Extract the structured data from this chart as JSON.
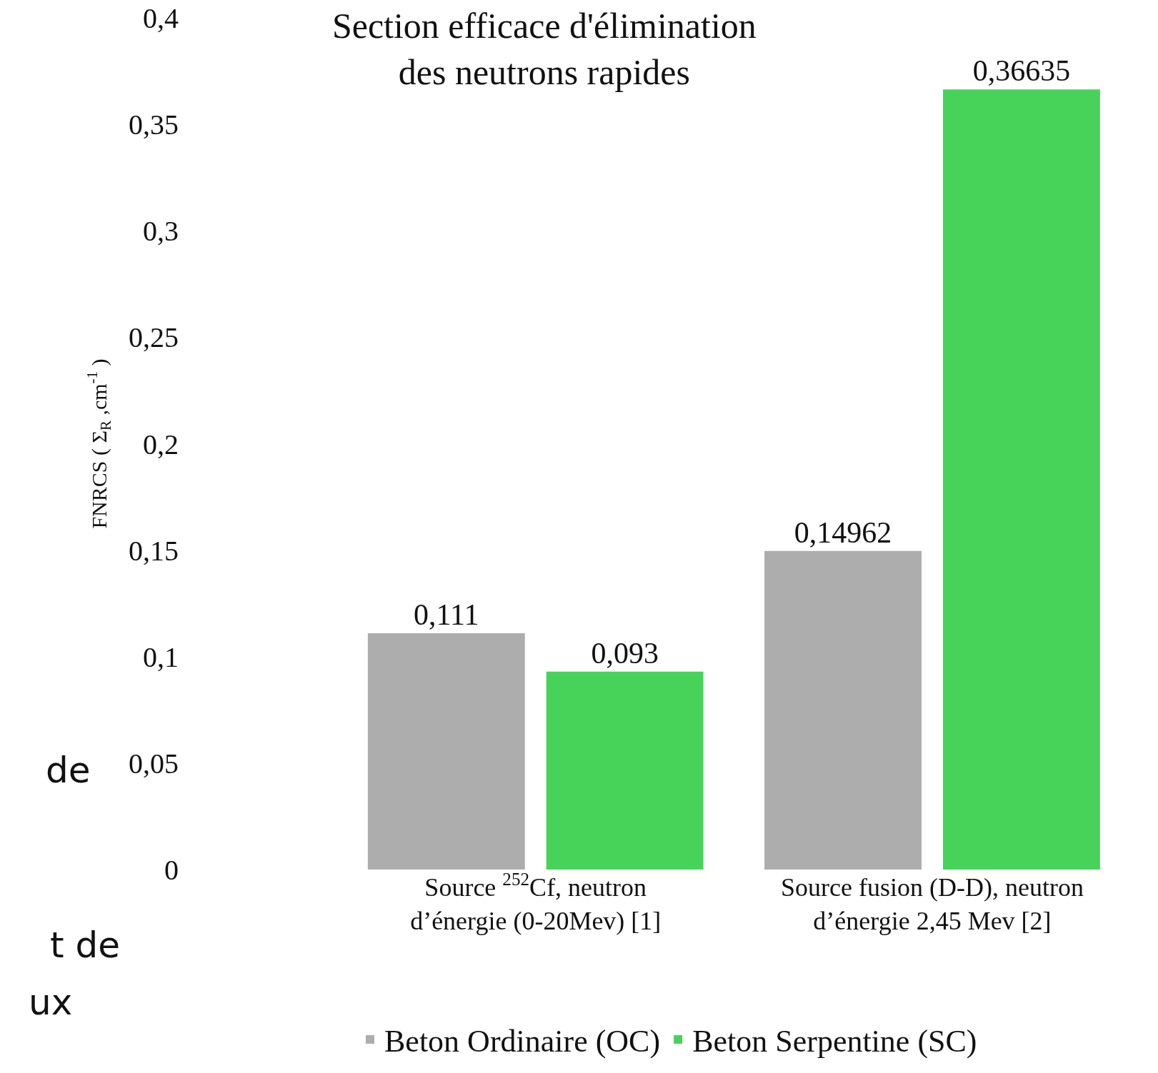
{
  "chart_data": {
    "type": "bar",
    "title": "Section efficace d'élimination\ndes neutrons rapides",
    "ylabel": "FNRCS ( Σ$_{R}$ ,cm$^{-1}$ )",
    "categories": [
      "Source $^{252}$Cf, neutron\nd’énergie (0-20Mev) [1]",
      "Source fusion (D-D), neutron\nd’énergie 2,45 Mev [2]"
    ],
    "series": [
      {
        "name": "Beton Ordinaire (OC)",
        "color": "#adadad",
        "values": [
          0.111,
          0.14962
        ],
        "value_labels": [
          "0,111",
          "0,14962"
        ]
      },
      {
        "name": "Beton Serpentine (SC)",
        "color": "#47d35a",
        "values": [
          0.093,
          0.36635
        ],
        "value_labels": [
          "0,093",
          "0,36635"
        ]
      }
    ],
    "ylim": [
      0,
      0.4
    ],
    "yticks": [
      0,
      {
        "value": 0.05,
        "label": "0,05"
      },
      {
        "value": 0.1,
        "label": "0,1"
      },
      {
        "value": 0.15,
        "label": "0,15"
      },
      {
        "value": 0.2,
        "label": "0,2"
      },
      {
        "value": 0.25,
        "label": "0,25"
      },
      {
        "value": 0.3,
        "label": "0,3"
      },
      {
        "value": 0.35,
        "label": "0,35"
      },
      {
        "value": 0.4,
        "label": "0,4"
      }
    ],
    "legend": "bottom",
    "annotations": [
      "de",
      "t de",
      "ux"
    ]
  }
}
